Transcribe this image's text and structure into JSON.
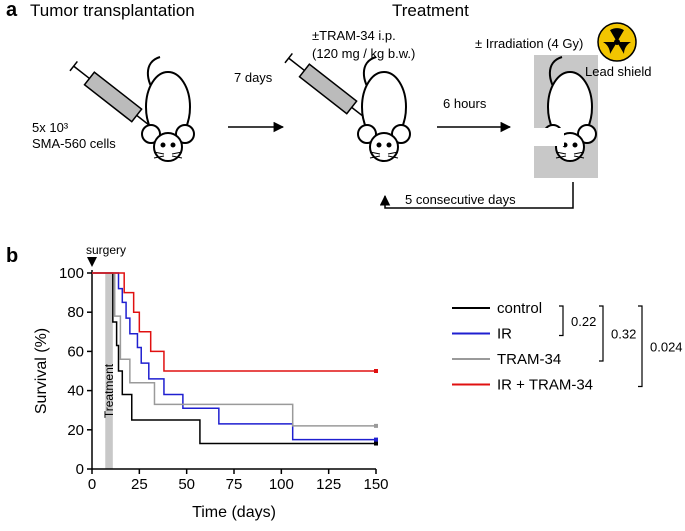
{
  "panel_a": {
    "label": "a",
    "title_left": "Tumor transplantation",
    "title_right": "Treatment",
    "cells_line1": "5x 10³",
    "cells_line2": "SMA-560 cells",
    "interval1": "7 days",
    "drug_line1": "±TRAM-34 i.p.",
    "drug_line2": "(120 mg / kg b.w.)",
    "interval2": "6 hours",
    "irradiation": "± Irradiation (4 Gy)",
    "shield": "Lead shield",
    "repeat": "5 consecutive days"
  },
  "chart_data": {
    "type": "step",
    "label": "b",
    "xlabel": "Time (days)",
    "ylabel": "Survival (%)",
    "xlim": [
      0,
      150
    ],
    "ylim": [
      0,
      100
    ],
    "xticks": [
      0,
      25,
      50,
      75,
      100,
      125,
      150
    ],
    "yticks": [
      0,
      20,
      40,
      60,
      80,
      100
    ],
    "surgery": {
      "label": "surgery",
      "x": 0
    },
    "shaded_span": {
      "label": "Treatment",
      "range": [
        7,
        11
      ],
      "color": "#c8c8c8"
    },
    "series": [
      {
        "name": "control",
        "color": "#000000",
        "x": [
          0,
          11,
          13,
          14,
          16,
          21,
          57,
          150
        ],
        "values": [
          100,
          75,
          63,
          50,
          38,
          25,
          13,
          13
        ]
      },
      {
        "name": "IR",
        "color": "#1f1fd0",
        "x": [
          0,
          14,
          16,
          18,
          20,
          24,
          26,
          30,
          38,
          48,
          67,
          106,
          150
        ],
        "values": [
          100,
          92,
          85,
          77,
          69,
          62,
          54,
          46,
          38,
          31,
          23,
          15,
          15
        ]
      },
      {
        "name": "TRAM-34",
        "color": "#9a9a9a",
        "x": [
          0,
          12,
          15,
          20,
          33,
          106,
          150
        ],
        "values": [
          100,
          78,
          56,
          44,
          33,
          22,
          22
        ]
      },
      {
        "name": "IR + TRAM-34",
        "color": "#e01010",
        "x": [
          0,
          17,
          22,
          25,
          31,
          38,
          150
        ],
        "values": [
          100,
          90,
          80,
          70,
          60,
          50,
          50
        ]
      }
    ],
    "comparisons": [
      "0.22",
      "0.32",
      "0.024"
    ]
  }
}
